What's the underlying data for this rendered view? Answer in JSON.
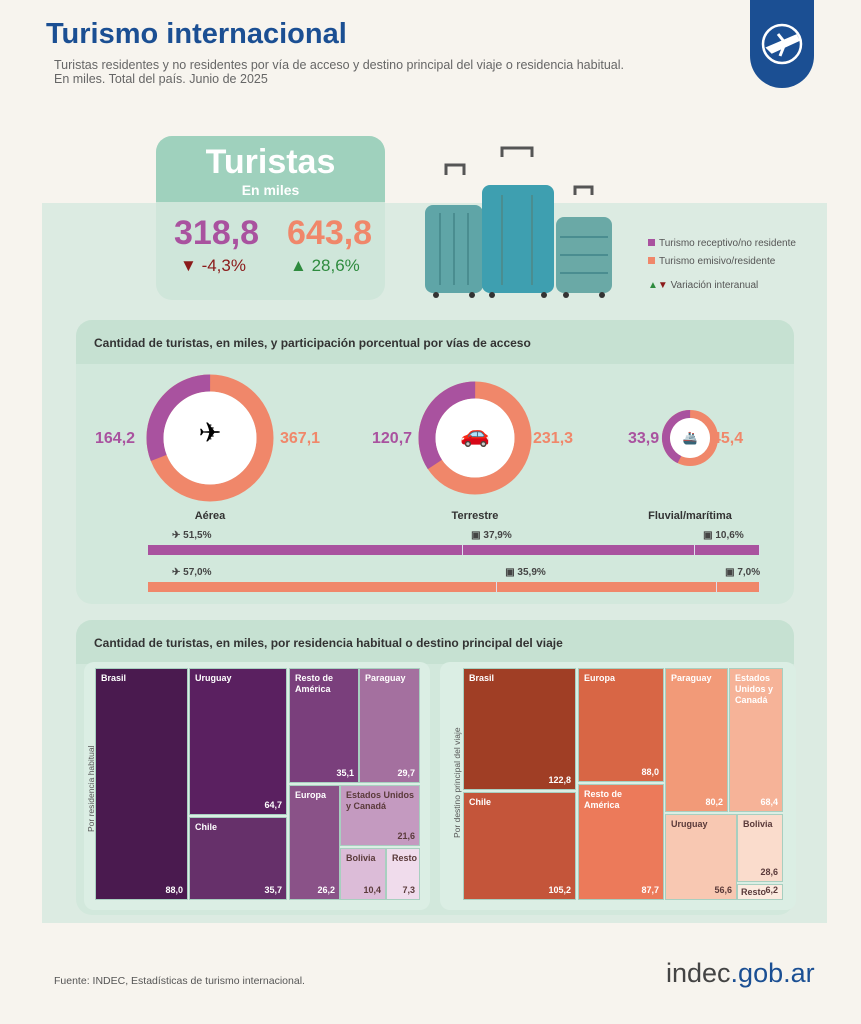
{
  "header": {
    "title": "Turismo internacional",
    "subtitle_1": "Turistas residentes y no residentes por vía de acceso y destino principal del viaje o residencia habitual.",
    "subtitle_2": "En miles. Total del país. Junio de 2025"
  },
  "summary": {
    "title": "Turistas",
    "unit": "En miles",
    "receptivo": "318,8",
    "receptivo_var": "-4,3%",
    "emisivo": "643,8",
    "emisivo_var": "28,6%"
  },
  "legend": {
    "receptivo": "Turismo receptivo/no residente",
    "emisivo": "Turismo emisivo/residente",
    "variacion": "Variación interanual"
  },
  "colors": {
    "receptivo": "#a9529f",
    "emisivo": "#f0876a",
    "brand": "#1b4f93"
  },
  "access": {
    "heading": "Cantidad de turistas, en miles, y participación porcentual por vías de acceso"
  },
  "destination": {
    "heading": "Cantidad de turistas, en miles, por residencia habitual o destino principal del viaje",
    "left_axis": "Por residencia habitual",
    "right_axis": "Por destino principal del viaje"
  },
  "footer": {
    "source": "Fuente: INDEC, Estadísticas de turismo internacional.",
    "logo_a": "indec",
    "logo_b": ".gob.ar"
  },
  "chart_data": [
    {
      "type": "pie",
      "title": "Vías de acceso",
      "categories": [
        "Aérea",
        "Terrestre",
        "Fluvial/marítima"
      ],
      "series": [
        {
          "name": "Turismo receptivo/no residente",
          "values": [
            164.2,
            120.7,
            33.9
          ],
          "labels": [
            "164,2",
            "120,7",
            "33,9"
          ]
        },
        {
          "name": "Turismo emisivo/residente",
          "values": [
            367.1,
            231.3,
            45.4
          ],
          "labels": [
            "367,1",
            "231,3",
            "45,4"
          ]
        }
      ]
    },
    {
      "type": "bar",
      "stacked": true,
      "categories": [
        "Aérea",
        "Terrestre",
        "Fluvial/marítima"
      ],
      "series": [
        {
          "name": "Turismo receptivo/no residente",
          "values": [
            51.5,
            37.9,
            10.6
          ],
          "labels": [
            "51,5%",
            "37,9%",
            "10,6%"
          ]
        },
        {
          "name": "Turismo emisivo/residente",
          "values": [
            57.0,
            35.9,
            7.0
          ],
          "labels": [
            "57,0%",
            "35,9%",
            "7,0%"
          ]
        }
      ]
    },
    {
      "type": "heatmap",
      "subtype": "treemap",
      "title": "Por residencia habitual",
      "categories": [
        "Brasil",
        "Uruguay",
        "Chile",
        "Resto de América",
        "Paraguay",
        "Europa",
        "Estados Unidos y Canadá",
        "Bolivia",
        "Resto"
      ],
      "values": [
        88.0,
        64.7,
        35.7,
        35.1,
        29.7,
        26.2,
        21.6,
        10.4,
        7.3
      ],
      "labels": [
        "88,0",
        "64,7",
        "35,7",
        "35,1",
        "29,7",
        "26,2",
        "21,6",
        "10,4",
        "7,3"
      ]
    },
    {
      "type": "heatmap",
      "subtype": "treemap",
      "title": "Por destino principal del viaje",
      "categories": [
        "Brasil",
        "Chile",
        "Europa",
        "Resto de América",
        "Paraguay",
        "Estados Unidos y Canadá",
        "Uruguay",
        "Bolivia",
        "Resto"
      ],
      "values": [
        122.8,
        105.2,
        88.0,
        87.7,
        80.2,
        68.4,
        56.6,
        28.6,
        6.2
      ],
      "labels": [
        "122,8",
        "105,2",
        "88,0",
        "87,7",
        "80,2",
        "68,4",
        "56,6",
        "28,6",
        "6,2"
      ]
    }
  ]
}
